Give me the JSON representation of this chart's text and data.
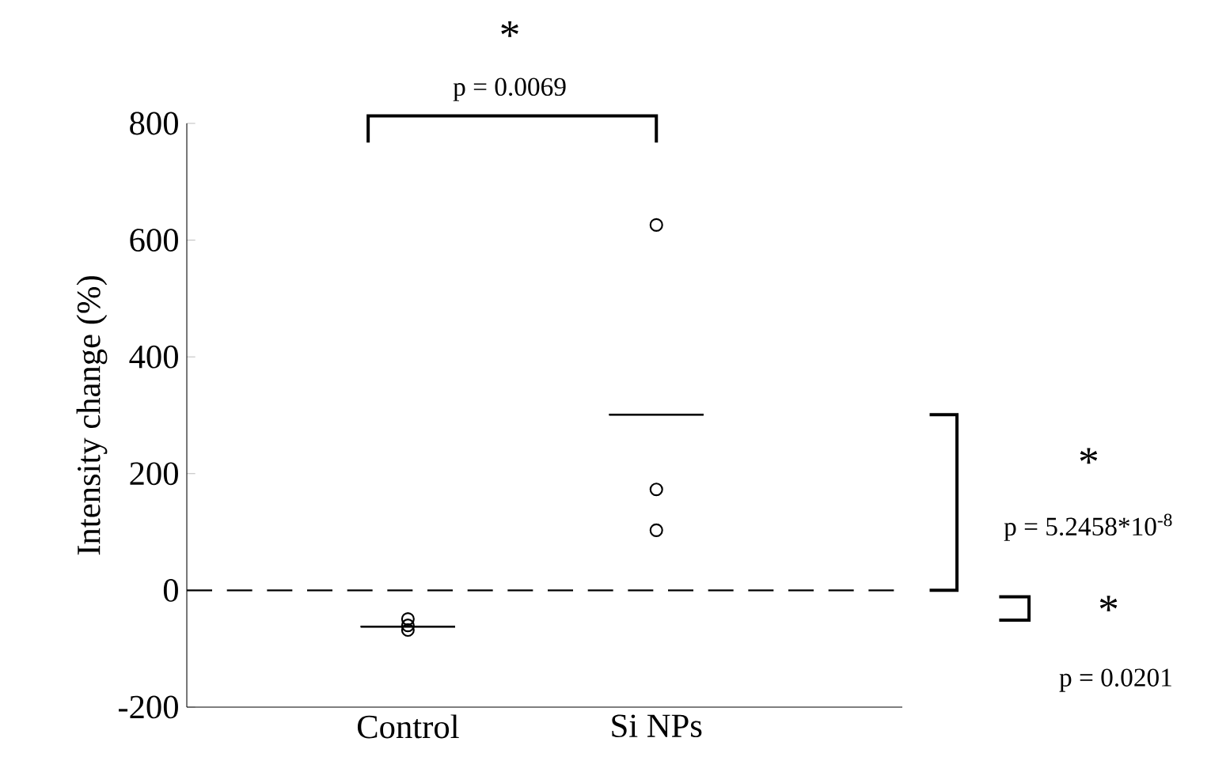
{
  "chart_data": {
    "type": "scatter",
    "ylabel": "Intensity change (%)",
    "categories": [
      "Control",
      "Si NPs"
    ],
    "ylim": [
      -200,
      800
    ],
    "yticks": [
      -200,
      0,
      200,
      400,
      600,
      800
    ],
    "grid": false,
    "series": [
      {
        "x": [
          "Control",
          "Control",
          "Control",
          "Si NPs",
          "Si NPs",
          "Si NPs"
        ],
        "values": [
          -49,
          -60,
          -68,
          626,
          173,
          103
        ],
        "marker": "circle",
        "color": "#000000"
      },
      {
        "type": "box",
        "boxes": [
          {
            "low": -62,
            "q1": -62,
            "median": -62,
            "q3": -62,
            "high": -62
          },
          {
            "low": 301,
            "q1": 301,
            "median": 301,
            "q3": 301,
            "high": 301
          }
        ],
        "color": "#000000"
      }
    ],
    "ref_lines": [
      {
        "axis": "y",
        "value": 0,
        "line_style": "dashed",
        "color": "#000000"
      }
    ],
    "annotations": [
      "*",
      "p = 0.0069",
      "*",
      "p = 5.2458*10$^{-8}$",
      "*",
      "p = 0.0201"
    ]
  }
}
